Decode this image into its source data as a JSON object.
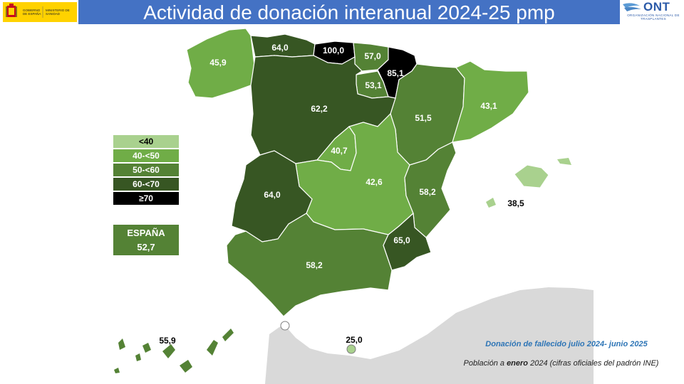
{
  "header": {
    "title": "Actividad de donación interanual 2024-25 pmp",
    "gov_logo_text_1": "GOBIERNO DE ESPAÑA",
    "gov_logo_text_2": "MINISTERIO DE SANIDAD",
    "ont_acronym": "ONT",
    "ont_subtitle": "ORGANIZACIÓN NACIONAL DE TRASPLANTES"
  },
  "colors": {
    "lt40": "#a9d18e",
    "r40_50": "#70ad47",
    "r50_60": "#548235",
    "r60_70": "#375623",
    "gte70": "#000000",
    "title_bar": "#4472c4",
    "africa": "#d9d9d9"
  },
  "legend": [
    {
      "label": "<40",
      "color": "#a9d18e",
      "text_color": "#000000"
    },
    {
      "label": "40-<50",
      "color": "#70ad47",
      "text_color": "#ffffff"
    },
    {
      "label": "50-<60",
      "color": "#548235",
      "text_color": "#ffffff"
    },
    {
      "label": "60-<70",
      "color": "#375623",
      "text_color": "#ffffff"
    },
    {
      "label": "≥70",
      "color": "#000000",
      "text_color": "#ffffff"
    }
  ],
  "spain": {
    "label": "ESPAÑA",
    "value": "52,7"
  },
  "regions": {
    "galicia": "45,9",
    "asturias": "64,0",
    "cantabria": "100,0",
    "pais_vasco": "57,0",
    "navarra": "85,1",
    "la_rioja": "53,1",
    "aragon": "51,5",
    "cataluna": "43,1",
    "castilla_leon": "62,2",
    "madrid": "40,7",
    "castilla_la_mancha": "42,6",
    "valencia": "58,2",
    "baleares": "38,5",
    "extremadura": "64,0",
    "murcia": "65,0",
    "andalucia": "58,2",
    "canarias": "55,9",
    "ceuta_melilla": "25,0"
  },
  "notes": {
    "period": "Donación de fallecido julio 2024- junio 2025",
    "population_prefix": "Población a ",
    "population_bold": "enero",
    "population_suffix": " 2024 (cifras oficiales del padrón INE)"
  }
}
